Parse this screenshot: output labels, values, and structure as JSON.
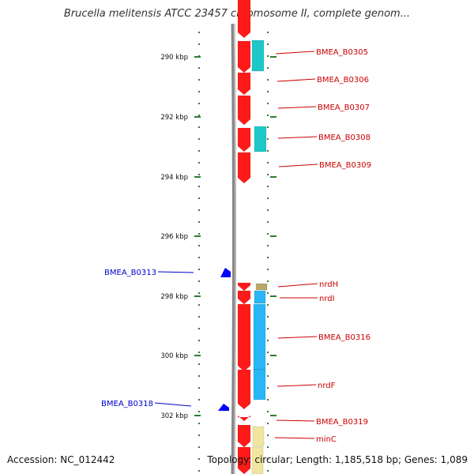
{
  "title": "Brucella melitensis ATCC 23457 chromosome II, complete genom...",
  "footer": {
    "accession": "Accession: NC_012442",
    "topology": "Topology: circular; Length: 1,185,518 bp; Genes: 1,089"
  },
  "colors": {
    "backbone": "#808080",
    "scale_tick": "#2e7d32",
    "cds_forward": "#ff1a1a",
    "cds_reverse": "#0000ff",
    "feature_cyan": "#1ec8c8",
    "feature_blue": "#29b6f6",
    "feature_tan": "#b8a96a",
    "feature_yellow": "#f0e6a0",
    "label_forward": "#cc0000",
    "label_reverse": "#0000cc"
  },
  "scale_labels": [
    "290 kbp",
    "292 kbp",
    "294 kbp",
    "296 kbp",
    "298 kbp",
    "300 kbp",
    "302 kbp"
  ],
  "forward_labels": [
    "BMEA_B0305",
    "BMEA_B0306",
    "BMEA_B0307",
    "BMEA_B0308",
    "BMEA_B0309",
    "nrdH",
    "nrdI",
    "BMEA_B0316",
    "nrdF",
    "BMEA_B0319",
    "minC"
  ],
  "reverse_labels": [
    "BMEA_B0313",
    "BMEA_B0318"
  ]
}
